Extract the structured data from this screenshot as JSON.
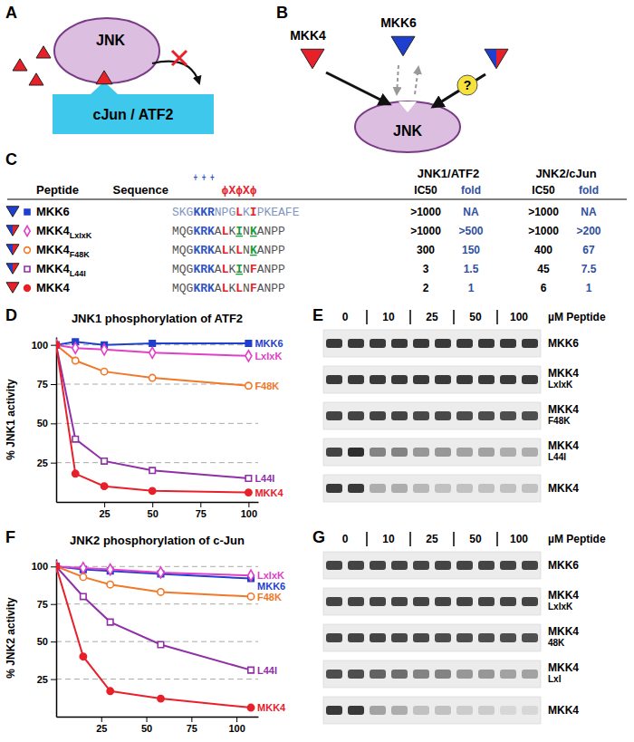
{
  "panel_a": {
    "panel_label": "A",
    "enzyme": "JNK",
    "substrate": "cJun / ATF2"
  },
  "panel_b": {
    "panel_label": "B",
    "kinases": [
      "MKK4",
      "MKK6"
    ],
    "enzyme": "JNK",
    "query": "?"
  },
  "table": {
    "panel_label": "C",
    "headers": {
      "peptide": "Peptide",
      "sequence": "Sequence",
      "groups": [
        "JNK1/ATF2",
        "JNK2/cJun"
      ],
      "subheaders": [
        "IC50",
        "fold",
        "IC50",
        "fold"
      ]
    },
    "motif": {
      "charge": "+ + +",
      "pattern": "ϕXϕXϕ"
    },
    "rows": [
      {
        "name": "MKK6",
        "sequence": [
          {
            "text": "SKG",
            "color": "#8196c0"
          },
          {
            "text": "KKR",
            "color": "#2e55c0"
          },
          {
            "text": "NPG",
            "color": "#8196c0"
          },
          {
            "text": "L",
            "color": "#e8202a"
          },
          {
            "text": "K",
            "color": "#8196c0"
          },
          {
            "text": "I",
            "color": "#e8202a"
          },
          {
            "text": "PKEAFE",
            "color": "#8196c0"
          }
        ],
        "values": [
          ">1000",
          "NA",
          ">1000",
          "NA"
        ]
      },
      {
        "name": "MKK4",
        "sub": "LxIxK",
        "sequence": [
          {
            "text": "MQG",
            "color": "#555555"
          },
          {
            "text": "KRK",
            "color": "#2e55c0"
          },
          {
            "text": "A",
            "color": "#555555"
          },
          {
            "text": "L",
            "color": "#e8202a"
          },
          {
            "text": "K",
            "color": "#555555"
          },
          {
            "text": "I",
            "color": "#1a9a3a",
            "underline": true
          },
          {
            "text": "N",
            "color": "#555555"
          },
          {
            "text": "K",
            "color": "#1a9a3a",
            "underline": true
          },
          {
            "text": "ANPP",
            "color": "#555555"
          }
        ],
        "values": [
          ">1000",
          ">500",
          ">1000",
          ">200"
        ]
      },
      {
        "name": "MKK4",
        "sub": "F48K",
        "sequence": [
          {
            "text": "MQG",
            "color": "#555555"
          },
          {
            "text": "KRK",
            "color": "#2e55c0"
          },
          {
            "text": "A",
            "color": "#555555"
          },
          {
            "text": "L",
            "color": "#e8202a"
          },
          {
            "text": "K",
            "color": "#555555"
          },
          {
            "text": "L",
            "color": "#e8202a"
          },
          {
            "text": "N",
            "color": "#555555"
          },
          {
            "text": "K",
            "color": "#1a9a3a",
            "underline": true
          },
          {
            "text": "ANPP",
            "color": "#555555"
          }
        ],
        "values": [
          "300",
          "150",
          "400",
          "67"
        ]
      },
      {
        "name": "MKK4",
        "sub": "L44I",
        "sequence": [
          {
            "text": "MQG",
            "color": "#555555"
          },
          {
            "text": "KRK",
            "color": "#2e55c0"
          },
          {
            "text": "A",
            "color": "#555555"
          },
          {
            "text": "L",
            "color": "#e8202a"
          },
          {
            "text": "K",
            "color": "#555555"
          },
          {
            "text": "I",
            "color": "#1a9a3a",
            "underline": true
          },
          {
            "text": "N",
            "color": "#555555"
          },
          {
            "text": "F",
            "color": "#e8202a"
          },
          {
            "text": "ANPP",
            "color": "#555555"
          }
        ],
        "values": [
          "3",
          "1.5",
          "45",
          "7.5"
        ]
      },
      {
        "name": "MKK4",
        "sequence": [
          {
            "text": "MQG",
            "color": "#555555"
          },
          {
            "text": "KRK",
            "color": "#2e55c0"
          },
          {
            "text": "A",
            "color": "#555555"
          },
          {
            "text": "L",
            "color": "#e8202a"
          },
          {
            "text": "K",
            "color": "#555555"
          },
          {
            "text": "L",
            "color": "#e8202a"
          },
          {
            "text": "N",
            "color": "#555555"
          },
          {
            "text": "F",
            "color": "#e8202a"
          },
          {
            "text": "ANPP",
            "color": "#555555"
          }
        ],
        "values": [
          "2",
          "1",
          "6",
          "1"
        ]
      }
    ]
  },
  "chart_data": [
    {
      "type": "line",
      "panel_label": "D",
      "title": "JNK1 phosphorylation of ATF2",
      "y_label": "% JNK1 activity",
      "x": [
        0,
        10,
        25,
        50,
        100
      ],
      "xlim": [
        0,
        105
      ],
      "xticks": [
        25,
        50,
        75,
        100
      ],
      "ylim": [
        0,
        105
      ],
      "yticks": [
        25,
        50,
        75,
        100
      ],
      "grid": true,
      "series": [
        {
          "name": "MKK6",
          "color": "#1f3fd0",
          "marker": "square",
          "values": [
            100,
            102,
            100,
            101,
            101
          ]
        },
        {
          "name": "LxIxK",
          "color": "#e040c8",
          "marker": "open-diamond",
          "values": [
            100,
            98,
            97,
            95,
            93
          ]
        },
        {
          "name": "F48K",
          "color": "#f07828",
          "marker": "open-circle",
          "values": [
            100,
            90,
            83,
            79,
            74
          ]
        },
        {
          "name": "L44I",
          "color": "#9030a8",
          "marker": "open-square",
          "values": [
            100,
            40,
            26,
            20,
            15
          ]
        },
        {
          "name": "MKK4",
          "color": "#e8202a",
          "marker": "circle",
          "values": [
            100,
            18,
            10,
            7,
            6
          ]
        }
      ]
    },
    {
      "type": "line",
      "panel_label": "F",
      "title": "JNK2 phosphorylation of c-Jun",
      "y_label": "% JNK2 activity",
      "x": [
        0,
        15,
        30,
        58,
        108
      ],
      "xlim": [
        0,
        112
      ],
      "xticks": [
        25,
        50,
        75,
        100
      ],
      "ylim": [
        0,
        105
      ],
      "yticks": [
        25,
        50,
        75,
        100
      ],
      "grid": true,
      "series": [
        {
          "name": "MKK6",
          "color": "#1f3fd0",
          "marker": "square",
          "values": [
            100,
            98,
            97,
            95,
            92
          ]
        },
        {
          "name": "LxIxK",
          "color": "#e040c8",
          "marker": "open-diamond",
          "values": [
            100,
            99,
            98,
            96,
            94
          ]
        },
        {
          "name": "F48K",
          "color": "#f07828",
          "marker": "open-circle",
          "values": [
            100,
            93,
            88,
            83,
            80
          ]
        },
        {
          "name": "L44I",
          "color": "#9030a8",
          "marker": "open-square",
          "values": [
            100,
            80,
            63,
            48,
            31
          ]
        },
        {
          "name": "MKK4",
          "color": "#e8202a",
          "marker": "circle",
          "values": [
            100,
            40,
            17,
            12,
            6
          ]
        }
      ]
    }
  ],
  "blots": [
    {
      "panel_label": "E",
      "lane_groups": [
        "0",
        "10",
        "25",
        "50",
        "100"
      ],
      "unit": "µM Peptide",
      "rows": [
        {
          "label": [
            "MKK6"
          ],
          "bands": [
            0.85,
            0.85,
            0.85,
            0.85,
            0.85,
            0.85,
            0.85,
            0.85,
            0.85,
            0.85
          ]
        },
        {
          "label": [
            "MKK4",
            "LxIxK"
          ],
          "bands": [
            0.85,
            0.85,
            0.85,
            0.85,
            0.85,
            0.85,
            0.85,
            0.85,
            0.85,
            0.85
          ]
        },
        {
          "label": [
            "MKK4",
            "F48K"
          ],
          "bands": [
            0.8,
            0.8,
            0.8,
            0.8,
            0.78,
            0.78,
            0.76,
            0.76,
            0.75,
            0.75
          ]
        },
        {
          "label": [
            "MKK4",
            "L44I"
          ],
          "bands": [
            0.8,
            0.9,
            0.5,
            0.5,
            0.4,
            0.4,
            0.35,
            0.35,
            0.3,
            0.3
          ]
        },
        {
          "label": [
            "MKK4"
          ],
          "bands": [
            0.85,
            0.85,
            0.3,
            0.3,
            0.25,
            0.2,
            0.2,
            0.2,
            0.2,
            0.2
          ]
        }
      ]
    },
    {
      "panel_label": "G",
      "lane_groups": [
        "0",
        "10",
        "25",
        "50",
        "100"
      ],
      "unit": "µM Peptide",
      "rows": [
        {
          "label": [
            "MKK6"
          ],
          "bands": [
            0.8,
            0.8,
            0.8,
            0.8,
            0.8,
            0.8,
            0.8,
            0.8,
            0.8,
            0.8
          ]
        },
        {
          "label": [
            "MKK4",
            "LxIxK"
          ],
          "bands": [
            0.8,
            0.8,
            0.8,
            0.8,
            0.8,
            0.8,
            0.8,
            0.8,
            0.8,
            0.8
          ]
        },
        {
          "label": [
            "MKK4",
            "48K"
          ],
          "bands": [
            0.8,
            0.8,
            0.8,
            0.78,
            0.78,
            0.76,
            0.76,
            0.75,
            0.75,
            0.74
          ]
        },
        {
          "label": [
            "MKK4",
            "LxI"
          ],
          "bands": [
            0.75,
            0.75,
            0.65,
            0.6,
            0.5,
            0.5,
            0.4,
            0.4,
            0.35,
            0.35
          ]
        },
        {
          "label": [
            "MKK4"
          ],
          "bands": [
            0.85,
            0.85,
            0.35,
            0.3,
            0.2,
            0.2,
            0.15,
            0.15,
            0.1,
            0.1
          ]
        }
      ]
    }
  ]
}
